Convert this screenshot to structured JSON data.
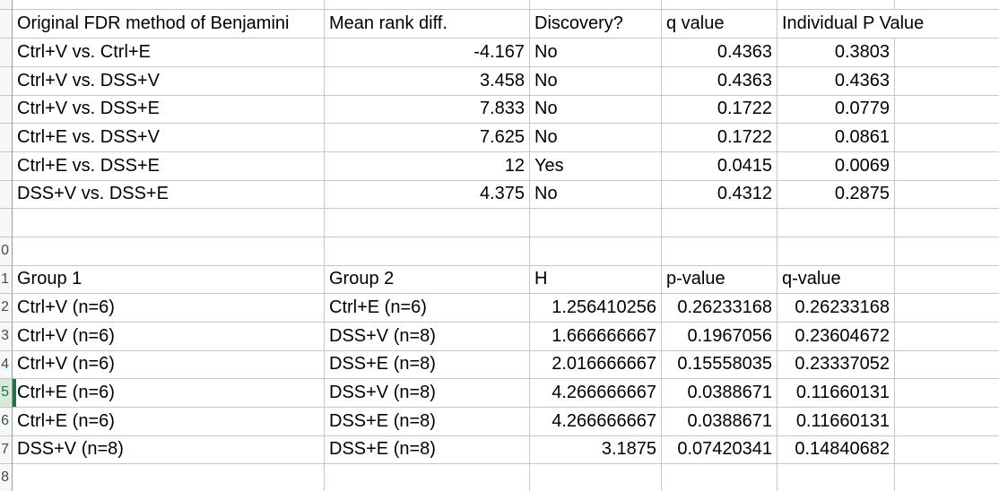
{
  "sheet": {
    "gutter": {
      "row_labels": [
        "0",
        "1",
        "2",
        "3",
        "4",
        "5",
        "6",
        "7",
        "8"
      ],
      "selected_label_index": 5
    },
    "fdr_table": {
      "columns": [
        "Original FDR method of Benjamini",
        "Mean rank diff.",
        "Discovery?",
        "q value",
        "Individual P Value"
      ],
      "rows": [
        {
          "comparison": "Ctrl+V vs. Ctrl+E",
          "mean_rank_diff": "-4.167",
          "discovery": "No",
          "q_value": "0.4363",
          "individual_p_value": "0.3803"
        },
        {
          "comparison": "Ctrl+V vs. DSS+V",
          "mean_rank_diff": "3.458",
          "discovery": "No",
          "q_value": "0.4363",
          "individual_p_value": "0.4363"
        },
        {
          "comparison": "Ctrl+V vs. DSS+E",
          "mean_rank_diff": "7.833",
          "discovery": "No",
          "q_value": "0.1722",
          "individual_p_value": "0.0779"
        },
        {
          "comparison": "Ctrl+E vs. DSS+V",
          "mean_rank_diff": "7.625",
          "discovery": "No",
          "q_value": "0.1722",
          "individual_p_value": "0.0861"
        },
        {
          "comparison": "Ctrl+E vs. DSS+E",
          "mean_rank_diff": "12",
          "discovery": "Yes",
          "q_value": "0.0415",
          "individual_p_value": "0.0069"
        },
        {
          "comparison": "DSS+V vs. DSS+E",
          "mean_rank_diff": "4.375",
          "discovery": "No",
          "q_value": "0.4312",
          "individual_p_value": "0.2875"
        }
      ]
    },
    "kw_table": {
      "columns": [
        "Group 1",
        "Group 2",
        "H",
        "p-value",
        "q-value"
      ],
      "rows": [
        {
          "group1": "Ctrl+V (n=6)",
          "group2": "Ctrl+E (n=6)",
          "h": "1.256410256",
          "p_value": "0.26233168",
          "q_value": "0.26233168"
        },
        {
          "group1": "Ctrl+V (n=6)",
          "group2": "DSS+V (n=8)",
          "h": "1.666666667",
          "p_value": "0.1967056",
          "q_value": "0.23604672"
        },
        {
          "group1": "Ctrl+V (n=6)",
          "group2": "DSS+E (n=8)",
          "h": "2.016666667",
          "p_value": "0.15558035",
          "q_value": "0.23337052"
        },
        {
          "group1": "Ctrl+E (n=6)",
          "group2": "DSS+V (n=8)",
          "h": "4.266666667",
          "p_value": "0.0388671",
          "q_value": "0.11660131"
        },
        {
          "group1": "Ctrl+E (n=6)",
          "group2": "DSS+E (n=8)",
          "h": "4.266666667",
          "p_value": "0.0388671",
          "q_value": "0.11660131"
        },
        {
          "group1": "DSS+V (n=8)",
          "group2": "DSS+E (n=8)",
          "h": "3.1875",
          "p_value": "0.07420341",
          "q_value": "0.14840682"
        }
      ]
    },
    "colors": {
      "gridline": "#c6c6c6",
      "gutter_border": "#9c9c9c",
      "gutter_bg": "#f6f7f7",
      "selection_green": "#217346",
      "selected_gutter_bg": "#d9e8dd",
      "row_label_color": "#424c56",
      "cell_text": "#000000"
    }
  }
}
